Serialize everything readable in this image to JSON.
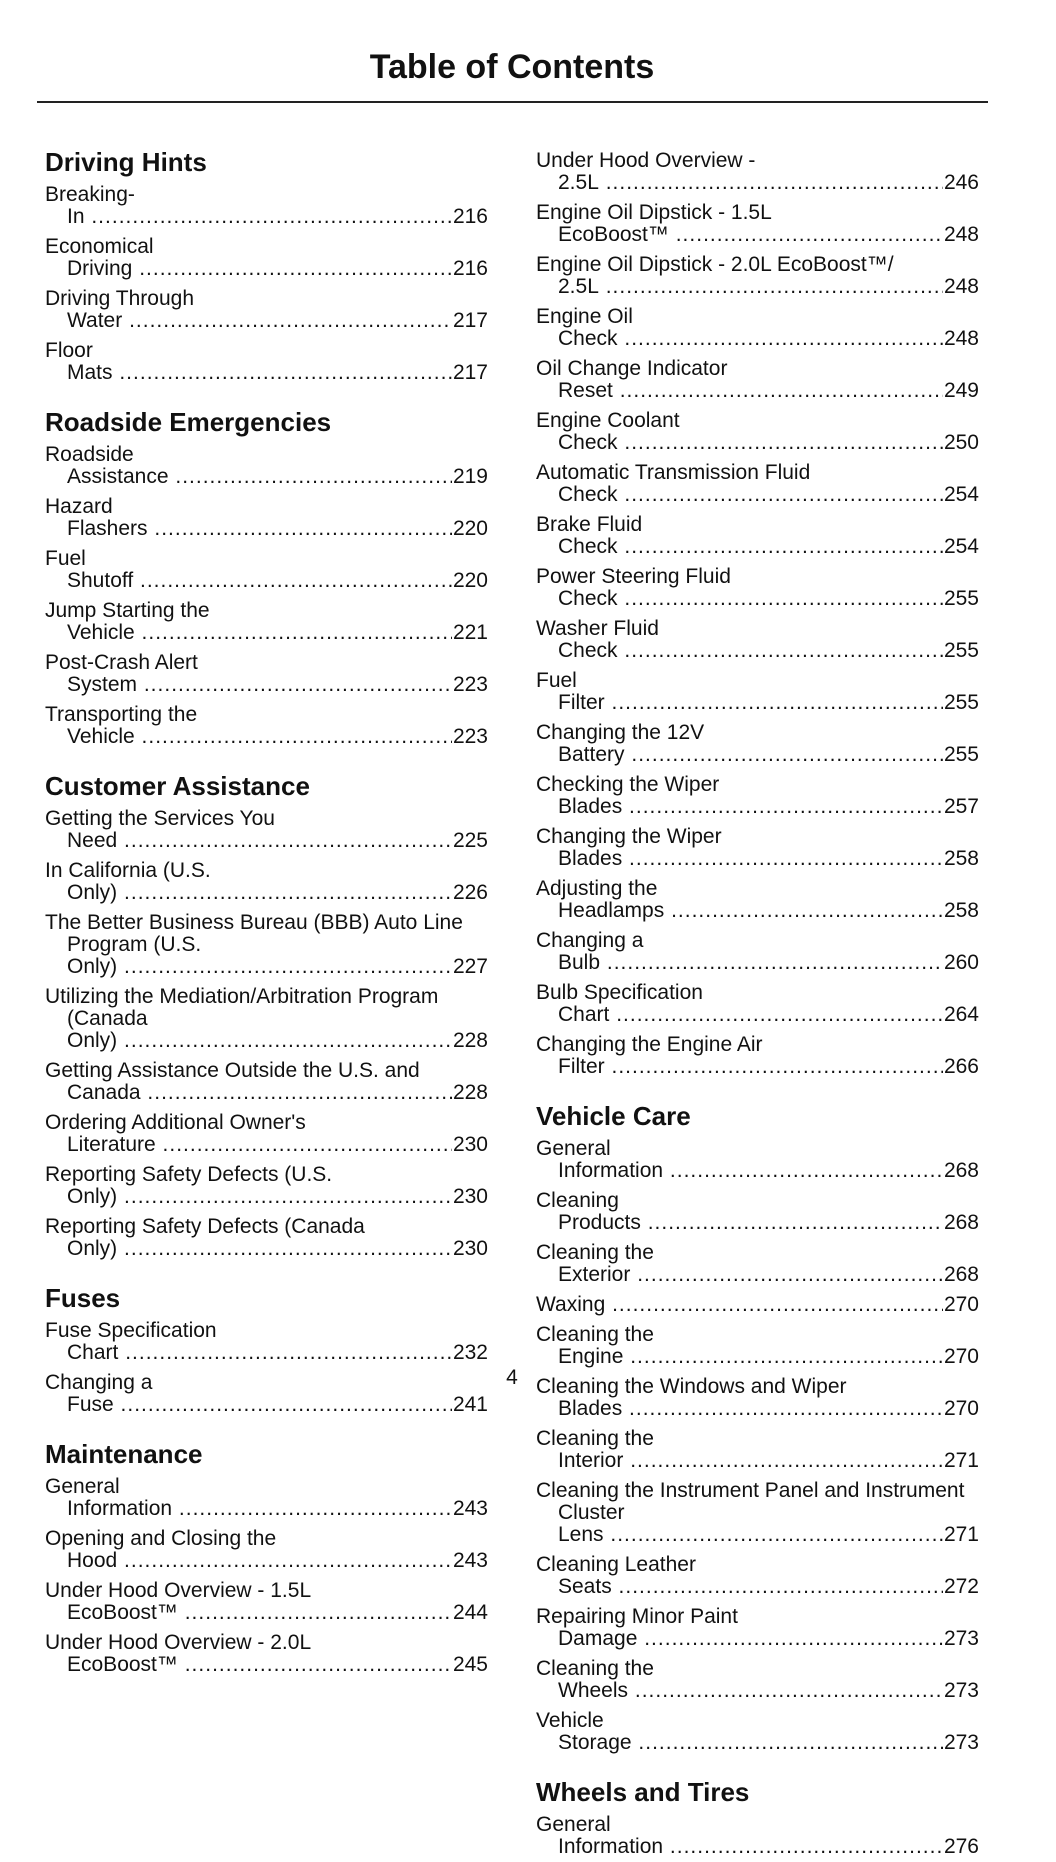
{
  "header": {
    "title": "Table of Contents"
  },
  "columns": [
    {
      "blocks": [
        {
          "heading": "Driving Hints",
          "entries": [
            {
              "title": "Breaking-In",
              "page": "216"
            },
            {
              "title": "Economical Driving",
              "page": "216"
            },
            {
              "title": "Driving Through Water",
              "page": "217"
            },
            {
              "title": "Floor Mats",
              "page": "217"
            }
          ]
        },
        {
          "heading": "Roadside Emergencies",
          "entries": [
            {
              "title": "Roadside Assistance",
              "page": "219"
            },
            {
              "title": "Hazard Flashers",
              "page": "220"
            },
            {
              "title": "Fuel Shutoff",
              "page": "220"
            },
            {
              "title": "Jump Starting the Vehicle",
              "page": "221"
            },
            {
              "title": "Post-Crash Alert System",
              "page": "223"
            },
            {
              "title": "Transporting the Vehicle",
              "page": "223"
            }
          ]
        },
        {
          "heading": "Customer Assistance",
          "entries": [
            {
              "title": "Getting the Services You Need",
              "page": "225"
            },
            {
              "title": "In California (U.S. Only)",
              "page": "226"
            },
            {
              "title": "The Better Business Bureau (BBB) Auto Line Program (U.S. Only)",
              "page": "227"
            },
            {
              "title": "Utilizing the Mediation/Arbitration Program (Canada Only)",
              "page": "228"
            },
            {
              "title": "Getting Assistance Outside the U.S. and Canada",
              "page": "228"
            },
            {
              "title": "Ordering Additional Owner's Literature",
              "page": "230"
            },
            {
              "title": "Reporting Safety Defects (U.S. Only)",
              "page": "230"
            },
            {
              "title": "Reporting Safety Defects (Canada Only)",
              "page": "230"
            }
          ]
        },
        {
          "heading": "Fuses",
          "entries": [
            {
              "title": "Fuse Specification Chart",
              "page": "232"
            },
            {
              "title": "Changing a Fuse",
              "page": "241"
            }
          ]
        },
        {
          "heading": "Maintenance",
          "entries": [
            {
              "title": "General Information",
              "page": "243"
            },
            {
              "title": "Opening and Closing the Hood",
              "page": "243"
            },
            {
              "title": "Under Hood Overview - 1.5L EcoBoost™",
              "page": "244"
            },
            {
              "title": "Under Hood Overview - 2.0L EcoBoost™",
              "page": "245"
            }
          ]
        }
      ]
    },
    {
      "blocks": [
        {
          "entries": [
            {
              "title": "Under Hood Overview - 2.5L",
              "page": "246"
            },
            {
              "title": "Engine Oil Dipstick - 1.5L EcoBoost™",
              "page": "248"
            },
            {
              "title": "Engine Oil Dipstick - 2.0L EcoBoost™/ 2.5L",
              "page": "248"
            },
            {
              "title": "Engine Oil Check",
              "page": "248"
            },
            {
              "title": "Oil Change Indicator Reset",
              "page": "249"
            },
            {
              "title": "Engine Coolant Check",
              "page": "250"
            },
            {
              "title": "Automatic Transmission Fluid Check",
              "page": "254"
            },
            {
              "title": "Brake Fluid Check",
              "page": "254"
            },
            {
              "title": "Power Steering Fluid Check",
              "page": "255"
            },
            {
              "title": "Washer Fluid Check",
              "page": "255"
            },
            {
              "title": "Fuel Filter",
              "page": "255"
            },
            {
              "title": "Changing the 12V Battery",
              "page": "255"
            },
            {
              "title": "Checking the Wiper Blades",
              "page": "257"
            },
            {
              "title": "Changing the Wiper Blades",
              "page": "258"
            },
            {
              "title": "Adjusting the Headlamps",
              "page": "258"
            },
            {
              "title": "Changing a Bulb",
              "page": "260"
            },
            {
              "title": "Bulb Specification Chart",
              "page": "264"
            },
            {
              "title": "Changing the Engine Air Filter",
              "page": "266"
            }
          ]
        },
        {
          "heading": "Vehicle Care",
          "entries": [
            {
              "title": "General Information",
              "page": "268"
            },
            {
              "title": "Cleaning Products",
              "page": "268"
            },
            {
              "title": "Cleaning the Exterior",
              "page": "268"
            },
            {
              "title": "Waxing",
              "page": "270"
            },
            {
              "title": "Cleaning the Engine",
              "page": "270"
            },
            {
              "title": "Cleaning the Windows and Wiper Blades",
              "page": "270"
            },
            {
              "title": "Cleaning the Interior",
              "page": "271"
            },
            {
              "title": "Cleaning the Instrument Panel and Instrument Cluster Lens",
              "page": "271"
            },
            {
              "title": "Cleaning Leather Seats",
              "page": "272"
            },
            {
              "title": "Repairing Minor Paint Damage",
              "page": "273"
            },
            {
              "title": "Cleaning the Wheels",
              "page": "273"
            },
            {
              "title": "Vehicle Storage",
              "page": "273"
            }
          ]
        },
        {
          "heading": "Wheels and Tires",
          "entries": [
            {
              "title": "General Information",
              "page": "276"
            }
          ]
        }
      ]
    }
  ],
  "footer": {
    "page_number": "4"
  }
}
